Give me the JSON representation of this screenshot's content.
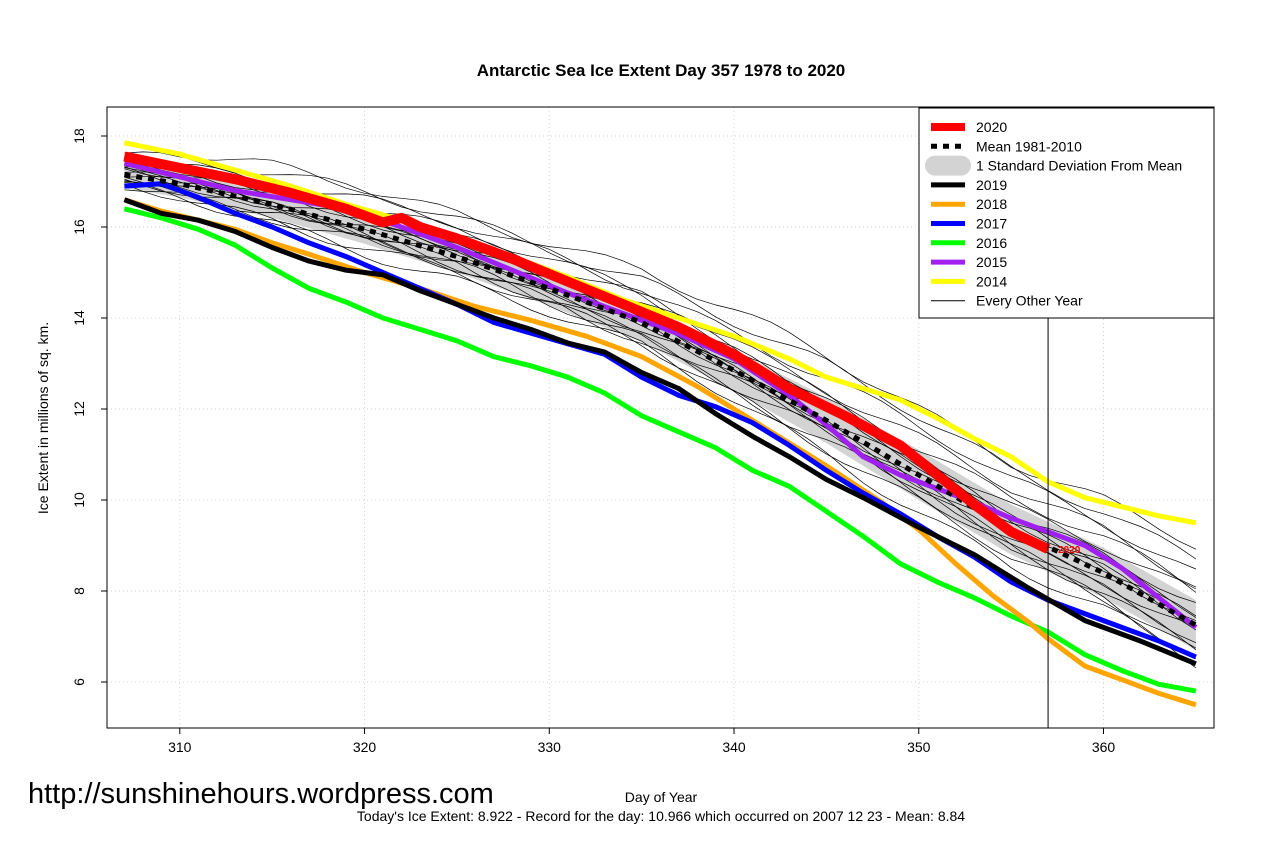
{
  "chart_data": {
    "type": "line",
    "title": "Antarctic Sea Ice Extent Day 357 1978 to 2020",
    "xlabel": "Day of Year",
    "ylabel": "Ice Extent in millions of sq. km.",
    "xlim": [
      307,
      365
    ],
    "ylim": [
      5,
      18.5
    ],
    "xticks": [
      310,
      320,
      330,
      340,
      350,
      360
    ],
    "yticks": [
      6,
      8,
      10,
      12,
      14,
      16,
      18
    ],
    "grid": true,
    "legend_position": "top-right",
    "marker_line_day": 357,
    "marker_label": "2020",
    "series": [
      {
        "name": "2020",
        "color": "#ff0000",
        "x": [
          307,
          310,
          313,
          316,
          319,
          321,
          322,
          323,
          325,
          328,
          331,
          334,
          337,
          340,
          343,
          346,
          349,
          351,
          353,
          355,
          357
        ],
        "y": [
          17.55,
          17.3,
          17.05,
          16.75,
          16.4,
          16.1,
          16.2,
          16.0,
          15.75,
          15.3,
          14.8,
          14.3,
          13.8,
          13.2,
          12.45,
          11.85,
          11.2,
          10.55,
          9.9,
          9.3,
          8.92
        ]
      },
      {
        "name": "Mean 1981-2010",
        "color": "#000000",
        "x": [
          307,
          310,
          315,
          320,
          325,
          330,
          335,
          340,
          345,
          350,
          355,
          360,
          365
        ],
        "y": [
          17.15,
          16.95,
          16.5,
          15.95,
          15.35,
          14.65,
          13.9,
          12.85,
          11.75,
          10.55,
          9.35,
          8.4,
          7.25
        ]
      },
      {
        "name": "1 Standard Deviation From Mean",
        "color": "#d3d3d3",
        "x": [
          307,
          310,
          315,
          320,
          325,
          330,
          335,
          340,
          345,
          350,
          355,
          360,
          365
        ],
        "y": [
          17.15,
          16.95,
          16.5,
          15.95,
          15.35,
          14.65,
          13.9,
          12.85,
          11.75,
          10.55,
          9.35,
          8.4,
          7.25
        ],
        "sd": [
          0.3,
          0.3,
          0.3,
          0.32,
          0.35,
          0.38,
          0.42,
          0.45,
          0.5,
          0.55,
          0.55,
          0.55,
          0.55
        ]
      },
      {
        "name": "2019",
        "color": "#000000",
        "x": [
          307,
          309,
          311,
          313,
          315,
          317,
          319,
          321,
          323,
          325,
          327,
          329,
          331,
          333,
          335,
          337,
          339,
          341,
          343,
          345,
          347,
          350,
          353,
          356,
          359,
          362,
          365
        ],
        "y": [
          16.6,
          16.3,
          16.15,
          15.9,
          15.55,
          15.25,
          15.05,
          14.95,
          14.6,
          14.3,
          14.0,
          13.75,
          13.45,
          13.25,
          12.8,
          12.45,
          11.9,
          11.4,
          10.95,
          10.45,
          10.05,
          9.4,
          8.8,
          8.05,
          7.35,
          6.9,
          6.4
        ]
      },
      {
        "name": "2018",
        "color": "#ffa500",
        "x": [
          307,
          309,
          311,
          313,
          315,
          317,
          320,
          323,
          326,
          329,
          332,
          335,
          338,
          340,
          342,
          345,
          348,
          350,
          352,
          354,
          356,
          357,
          359,
          361,
          363,
          365
        ],
        "y": [
          16.6,
          16.35,
          16.15,
          15.95,
          15.65,
          15.4,
          15.0,
          14.65,
          14.25,
          13.95,
          13.6,
          13.15,
          12.5,
          12.0,
          11.5,
          10.75,
          9.95,
          9.35,
          8.6,
          7.9,
          7.3,
          6.95,
          6.35,
          6.05,
          5.75,
          5.5
        ]
      },
      {
        "name": "2017",
        "color": "#0000ff",
        "x": [
          307,
          309,
          311,
          313,
          315,
          317,
          319,
          321,
          323,
          325,
          327,
          330,
          333,
          335,
          337,
          339,
          341,
          343,
          345,
          347,
          349,
          351,
          353,
          355,
          357,
          360,
          363,
          365
        ],
        "y": [
          16.9,
          16.95,
          16.65,
          16.3,
          16.0,
          15.65,
          15.35,
          15.0,
          14.65,
          14.3,
          13.9,
          13.55,
          13.2,
          12.7,
          12.3,
          12.05,
          11.7,
          11.2,
          10.65,
          10.15,
          9.7,
          9.2,
          8.75,
          8.2,
          7.8,
          7.35,
          6.9,
          6.55
        ]
      },
      {
        "name": "2016",
        "color": "#00ff00",
        "x": [
          307,
          309,
          311,
          313,
          315,
          317,
          319,
          321,
          323,
          325,
          327,
          329,
          331,
          333,
          335,
          337,
          339,
          341,
          343,
          345,
          347,
          349,
          351,
          353,
          355,
          357,
          359,
          361,
          363,
          365
        ],
        "y": [
          16.4,
          16.2,
          15.95,
          15.6,
          15.1,
          14.65,
          14.35,
          14.0,
          13.75,
          13.5,
          13.15,
          12.95,
          12.7,
          12.35,
          11.85,
          11.5,
          11.15,
          10.65,
          10.3,
          9.75,
          9.2,
          8.6,
          8.2,
          7.85,
          7.45,
          7.1,
          6.6,
          6.25,
          5.95,
          5.8
        ]
      },
      {
        "name": "2015",
        "color": "#a020f0",
        "x": [
          307,
          310,
          313,
          316,
          319,
          322,
          325,
          328,
          331,
          334,
          337,
          340,
          343,
          345,
          347,
          349,
          351,
          353,
          355,
          357,
          359,
          361,
          363,
          365
        ],
        "y": [
          17.4,
          17.1,
          16.8,
          16.6,
          16.4,
          16.0,
          15.55,
          15.05,
          14.55,
          14.1,
          13.65,
          13.1,
          12.3,
          11.65,
          10.95,
          10.55,
          10.25,
          9.95,
          9.6,
          9.3,
          9.0,
          8.5,
          7.85,
          7.2
        ]
      },
      {
        "name": "2014",
        "color": "#ffff00",
        "x": [
          307,
          310,
          313,
          316,
          319,
          322,
          325,
          328,
          331,
          334,
          337,
          340,
          343,
          345,
          347,
          349,
          351,
          353,
          355,
          357,
          359,
          361,
          363,
          365
        ],
        "y": [
          17.85,
          17.6,
          17.25,
          16.9,
          16.5,
          16.15,
          15.8,
          15.35,
          14.9,
          14.4,
          14.0,
          13.6,
          13.1,
          12.7,
          12.45,
          12.2,
          11.8,
          11.35,
          10.95,
          10.4,
          10.05,
          9.85,
          9.65,
          9.5
        ]
      }
    ],
    "legend": [
      "2020",
      "Mean 1981-2010",
      "1 Standard Deviation From Mean",
      "2019",
      "2018",
      "2017",
      "2016",
      "2015",
      "2014",
      "Every Other Year"
    ]
  },
  "watermark": "http://sunshinehours.wordpress.com",
  "footer": "Today's Ice Extent: 8.922  - Record for the day: 10.966 which occurred on 2007 12 23  - Mean: 8.84"
}
